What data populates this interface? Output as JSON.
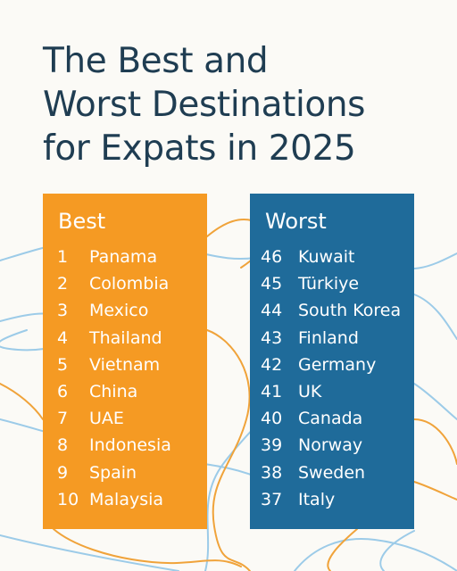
{
  "title": {
    "lines": [
      "The Best and",
      "Worst Destinations",
      "for Expats in 2025"
    ]
  },
  "best": {
    "heading": "Best",
    "items": [
      {
        "rank": "1",
        "name": "Panama"
      },
      {
        "rank": "2",
        "name": "Colombia"
      },
      {
        "rank": "3",
        "name": "Mexico"
      },
      {
        "rank": "4",
        "name": "Thailand"
      },
      {
        "rank": "5",
        "name": "Vietnam"
      },
      {
        "rank": "6",
        "name": "China"
      },
      {
        "rank": "7",
        "name": "UAE"
      },
      {
        "rank": "8",
        "name": "Indonesia"
      },
      {
        "rank": "9",
        "name": "Spain"
      },
      {
        "rank": "10",
        "name": "Malaysia"
      }
    ]
  },
  "worst": {
    "heading": "Worst",
    "items": [
      {
        "rank": "46",
        "name": "Kuwait"
      },
      {
        "rank": "45",
        "name": "Türkiye"
      },
      {
        "rank": "44",
        "name": "South Korea"
      },
      {
        "rank": "43",
        "name": "Finland"
      },
      {
        "rank": "42",
        "name": "Germany"
      },
      {
        "rank": "41",
        "name": "UK"
      },
      {
        "rank": "40",
        "name": "Canada"
      },
      {
        "rank": "39",
        "name": "Norway"
      },
      {
        "rank": "38",
        "name": "Sweden"
      },
      {
        "rank": "37",
        "name": "Italy"
      }
    ]
  },
  "colors": {
    "title": "#1f3d52",
    "best_panel": "#f59a23",
    "worst_panel": "#1f6b9a",
    "line_orange": "#f0a33a",
    "line_blue": "#9ccbe8"
  }
}
